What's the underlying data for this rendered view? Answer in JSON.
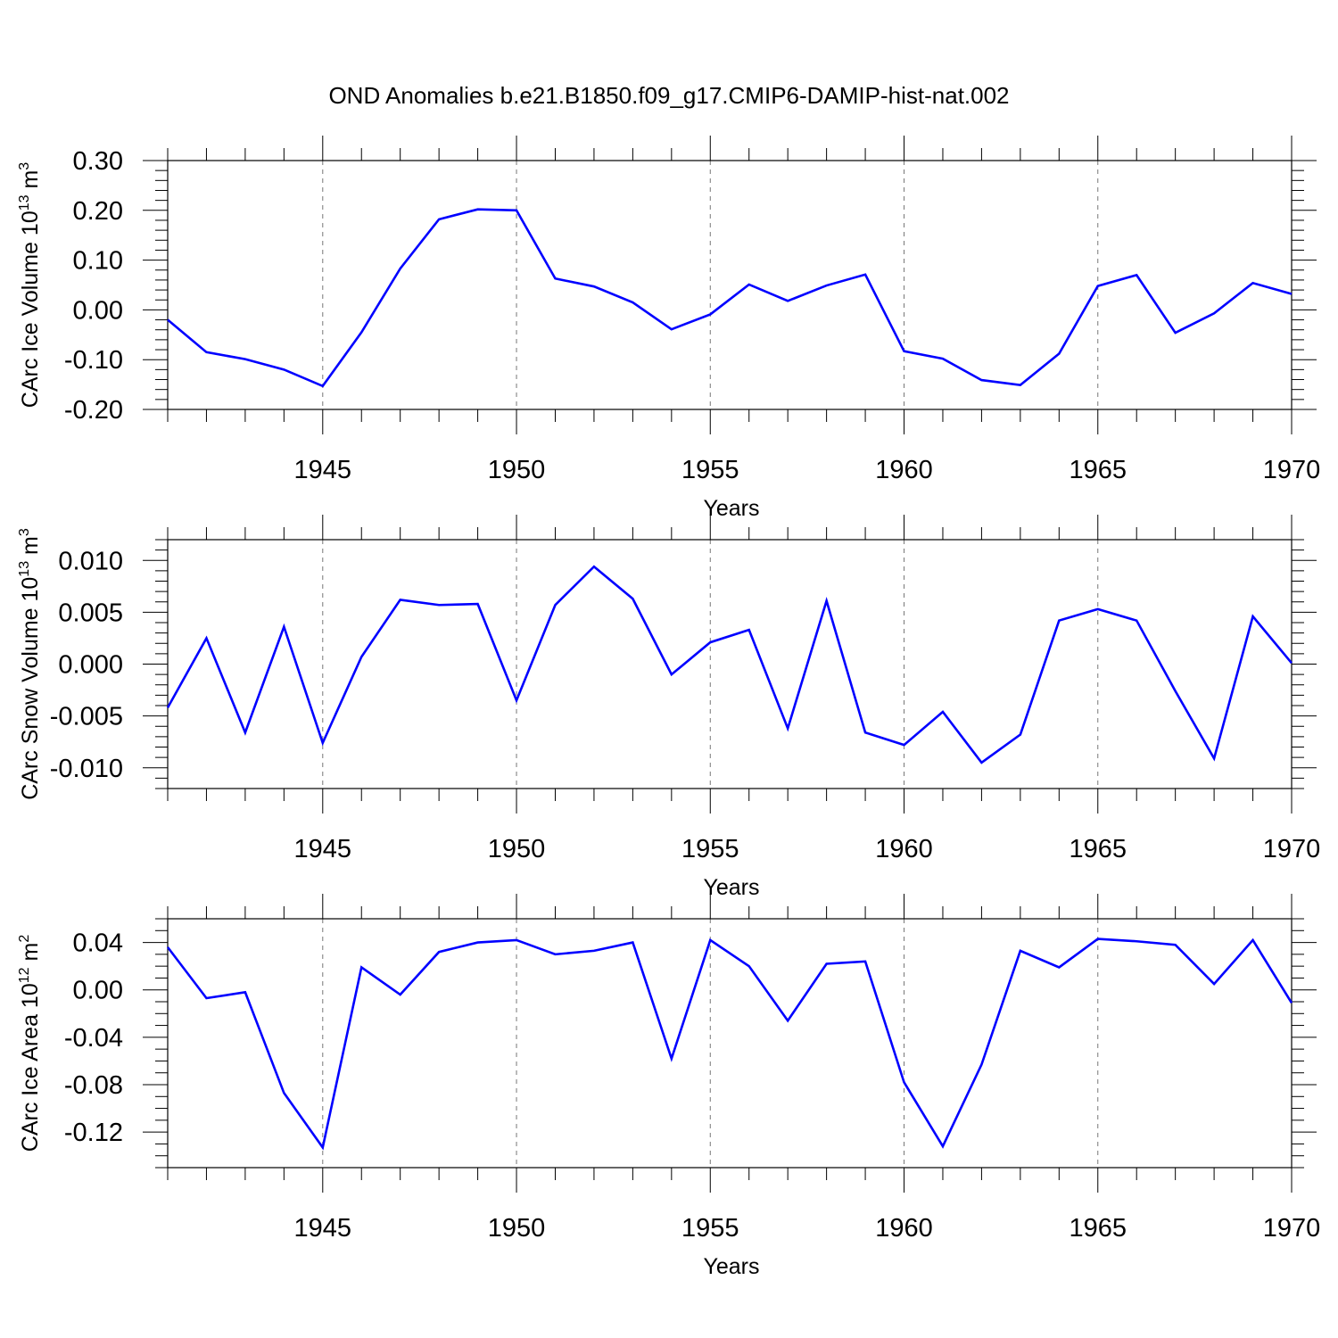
{
  "title": "OND Anomalies b.e21.B1850.f09_g17.CMIP6-DAMIP-hist-nat.002",
  "line_color": "#0000ff",
  "chart_data": [
    {
      "type": "line",
      "ylabel": {
        "base": "CArc Ice Volume 10",
        "exp": "13",
        "unit": " m",
        "unit_exp": "3"
      },
      "xlabel": "Years",
      "xlim": [
        1941,
        1970
      ],
      "ylim": [
        -0.2,
        0.3
      ],
      "yticks": [
        -0.2,
        -0.1,
        0.0,
        0.1,
        0.2,
        0.3
      ],
      "ytick_labels": [
        "-0.20",
        "-0.10",
        "0.00",
        "0.10",
        "0.20",
        "0.30"
      ],
      "yminor_step": 0.02,
      "xticks": [
        1945,
        1950,
        1955,
        1960,
        1965,
        1970
      ],
      "xtick_labels": [
        "1945",
        "1950",
        "1955",
        "1960",
        "1965",
        "1970"
      ],
      "grid": "vertical dashed at major x ticks",
      "x": [
        1941,
        1942,
        1943,
        1944,
        1945,
        1946,
        1947,
        1948,
        1949,
        1950,
        1951,
        1952,
        1953,
        1954,
        1955,
        1956,
        1957,
        1958,
        1959,
        1960,
        1961,
        1962,
        1963,
        1964,
        1965,
        1966,
        1967,
        1968,
        1969,
        1970
      ],
      "series": [
        {
          "values": [
            -0.02,
            -0.085,
            -0.099,
            -0.12,
            -0.153,
            -0.045,
            0.083,
            0.182,
            0.202,
            0.2,
            0.063,
            0.047,
            0.015,
            -0.039,
            -0.009,
            0.051,
            0.018,
            0.049,
            0.071,
            -0.083,
            -0.098,
            -0.141,
            -0.151,
            -0.088,
            0.048,
            0.07,
            -0.046,
            -0.007,
            0.054,
            0.032
          ]
        }
      ]
    },
    {
      "type": "line",
      "ylabel": {
        "base": "CArc Snow Volume 10",
        "exp": "13",
        "unit": " m",
        "unit_exp": "3"
      },
      "xlabel": "Years",
      "xlim": [
        1941,
        1970
      ],
      "ylim": [
        -0.012,
        0.012
      ],
      "yticks": [
        -0.01,
        -0.005,
        0.0,
        0.005,
        0.01
      ],
      "ytick_labels": [
        "-0.010",
        "-0.005",
        "0.000",
        "0.005",
        "0.010"
      ],
      "yminor_step": 0.001,
      "xticks": [
        1945,
        1950,
        1955,
        1960,
        1965,
        1970
      ],
      "xtick_labels": [
        "1945",
        "1950",
        "1955",
        "1960",
        "1965",
        "1970"
      ],
      "grid": "vertical dashed at major x ticks",
      "x": [
        1941,
        1942,
        1943,
        1944,
        1945,
        1946,
        1947,
        1948,
        1949,
        1950,
        1951,
        1952,
        1953,
        1954,
        1955,
        1956,
        1957,
        1958,
        1959,
        1960,
        1961,
        1962,
        1963,
        1964,
        1965,
        1966,
        1967,
        1968,
        1969,
        1970
      ],
      "series": [
        {
          "values": [
            -0.0042,
            0.0025,
            -0.0066,
            0.0036,
            -0.0076,
            0.0007,
            0.0062,
            0.0057,
            0.0058,
            -0.0035,
            0.0057,
            0.0094,
            0.0063,
            -0.001,
            0.0021,
            0.0033,
            -0.0062,
            0.0061,
            -0.0066,
            -0.0078,
            -0.0046,
            -0.0095,
            -0.0068,
            0.0042,
            0.0053,
            0.0042,
            -0.0026,
            -0.0091,
            0.0046,
            0.0001
          ]
        }
      ]
    },
    {
      "type": "line",
      "ylabel": {
        "base": "CArc Ice Area 10",
        "exp": "12",
        "unit": " m",
        "unit_exp": "2"
      },
      "xlabel": "Years",
      "xlim": [
        1941,
        1970
      ],
      "ylim": [
        -0.15,
        0.06
      ],
      "yticks": [
        -0.12,
        -0.08,
        -0.04,
        0.0,
        0.04
      ],
      "ytick_labels": [
        "-0.12",
        "-0.08",
        "-0.04",
        "0.00",
        "0.04"
      ],
      "yminor_step": 0.01,
      "xticks": [
        1945,
        1950,
        1955,
        1960,
        1965,
        1970
      ],
      "xtick_labels": [
        "1945",
        "1950",
        "1955",
        "1960",
        "1965",
        "1970"
      ],
      "grid": "vertical dashed at major x ticks",
      "x": [
        1941,
        1942,
        1943,
        1944,
        1945,
        1946,
        1947,
        1948,
        1949,
        1950,
        1951,
        1952,
        1953,
        1954,
        1955,
        1956,
        1957,
        1958,
        1959,
        1960,
        1961,
        1962,
        1963,
        1964,
        1965,
        1966,
        1967,
        1968,
        1969,
        1970
      ],
      "series": [
        {
          "values": [
            0.036,
            -0.007,
            -0.002,
            -0.087,
            -0.133,
            0.019,
            -0.004,
            0.032,
            0.04,
            0.042,
            0.03,
            0.033,
            0.04,
            -0.058,
            0.042,
            0.02,
            -0.026,
            0.022,
            0.024,
            -0.078,
            -0.132,
            -0.063,
            0.033,
            0.019,
            0.043,
            0.041,
            0.038,
            0.005,
            0.042,
            -0.011
          ]
        }
      ]
    }
  ]
}
